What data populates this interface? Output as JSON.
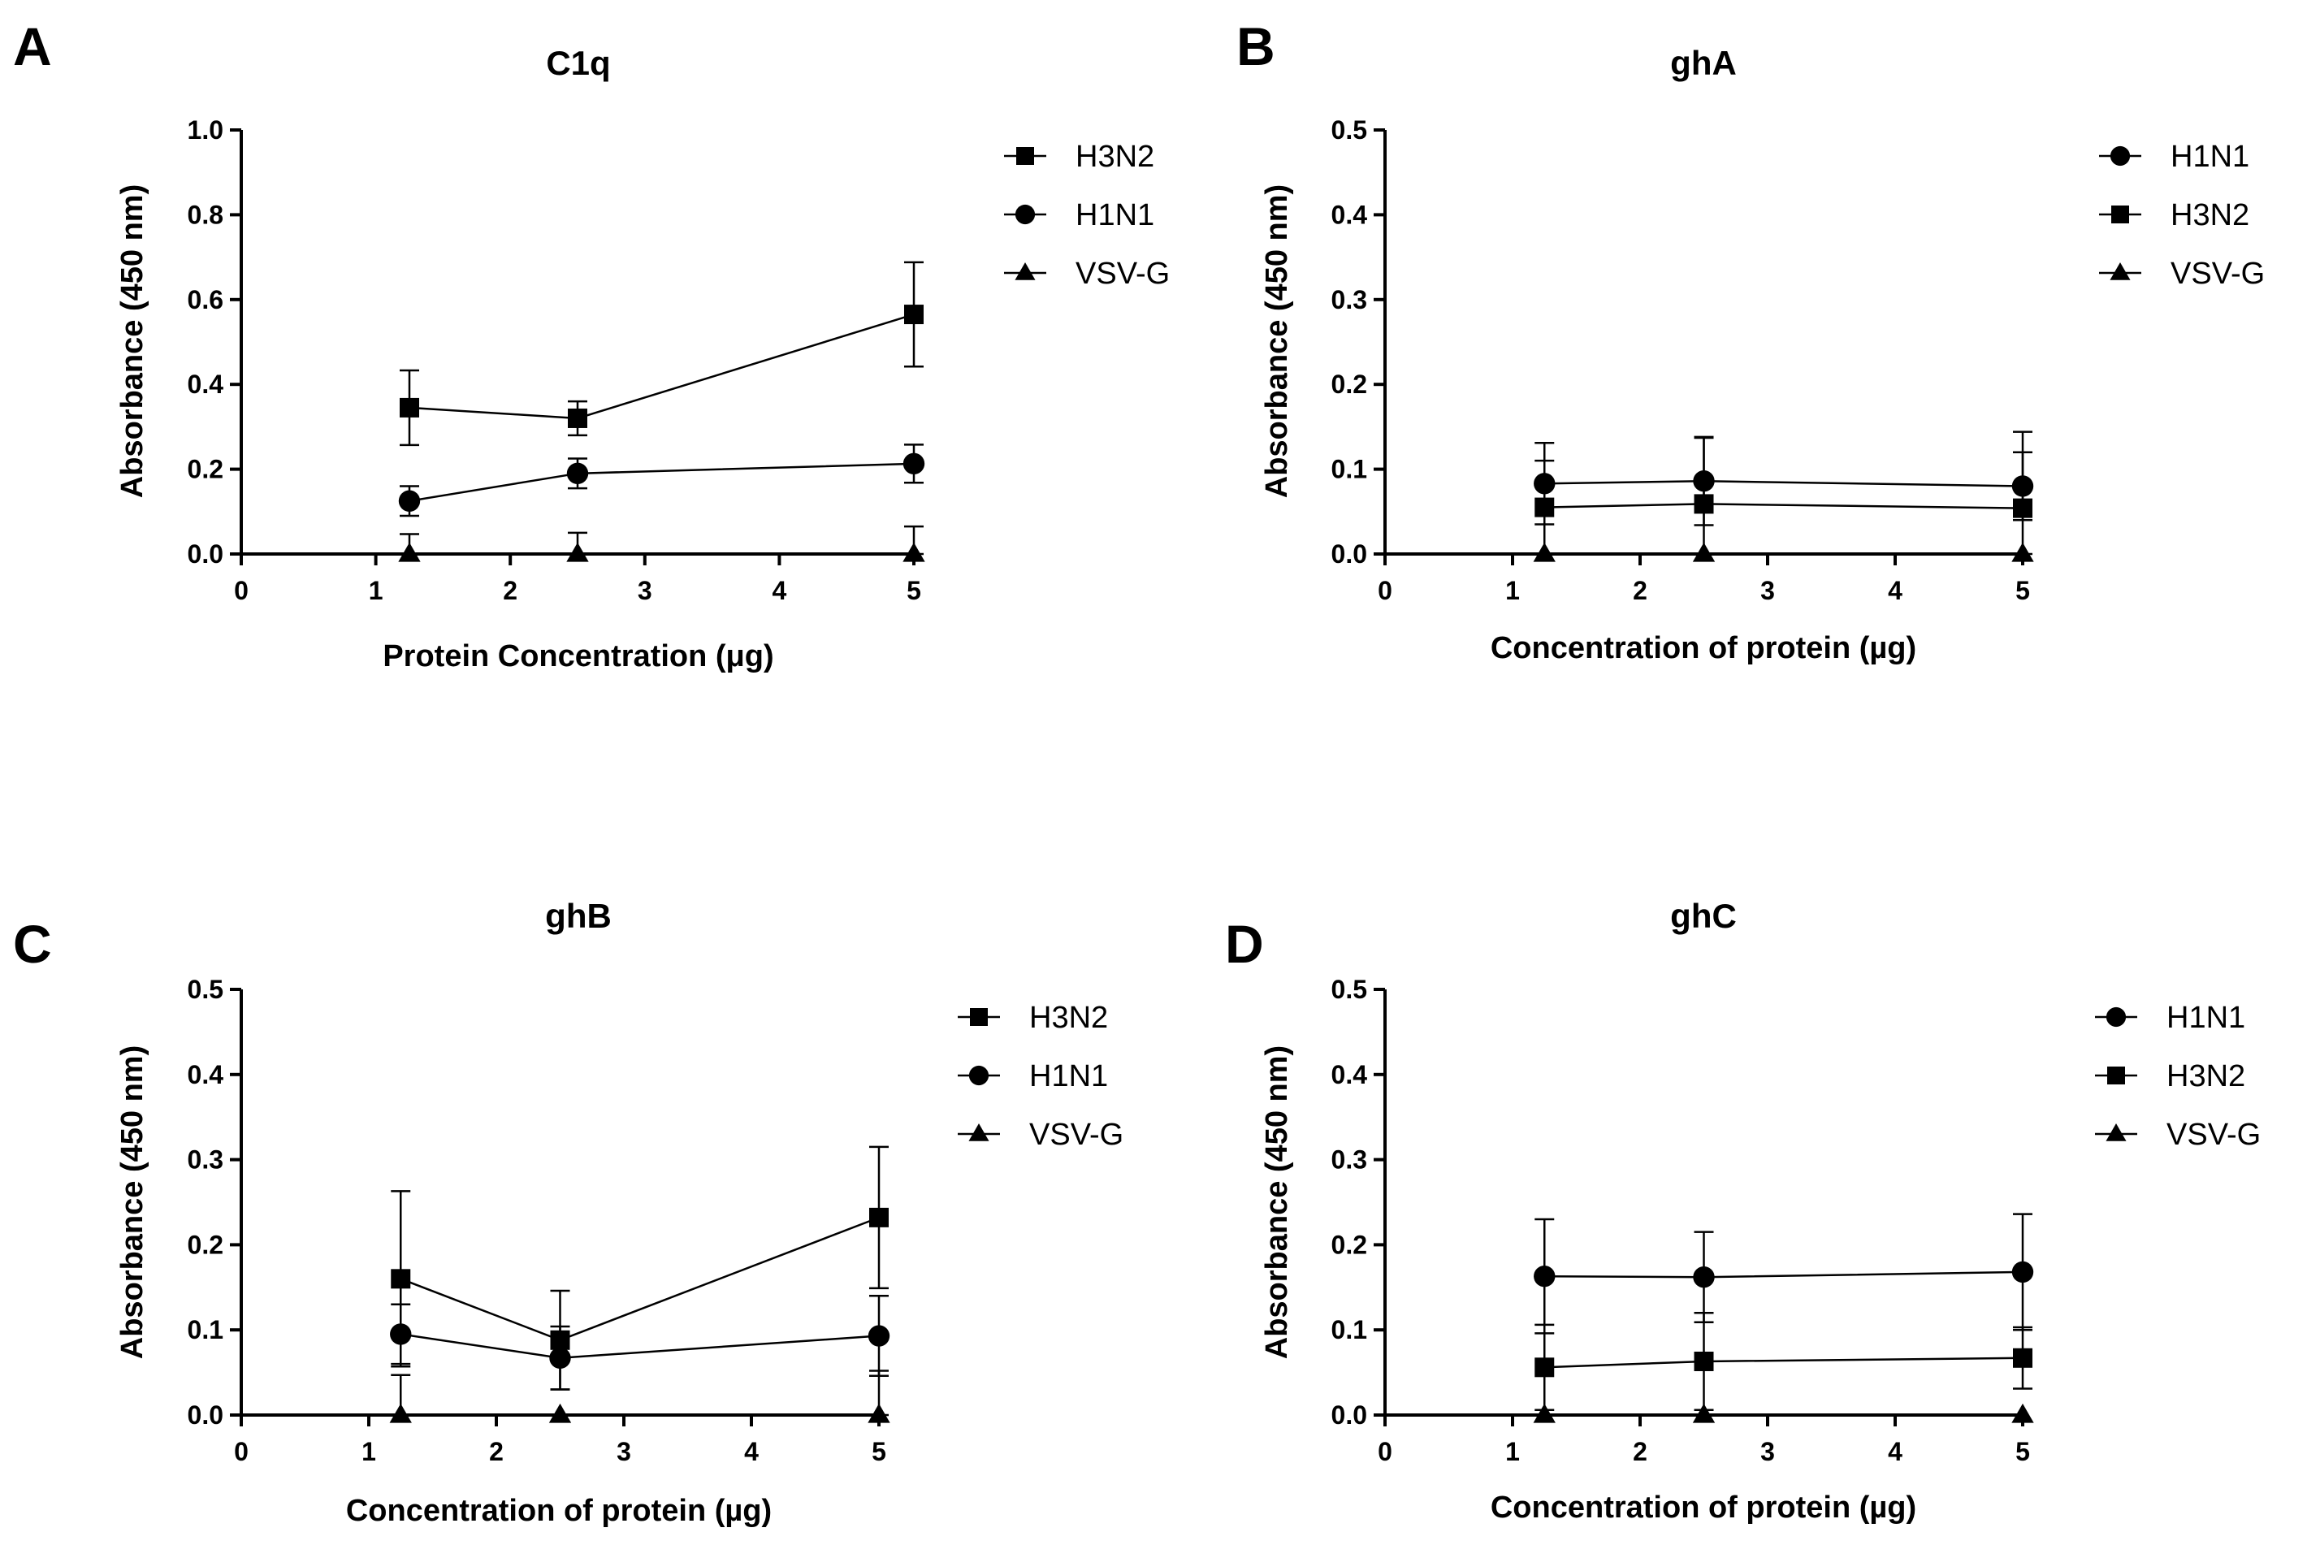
{
  "chart_data": [
    {
      "panel": "A",
      "type": "line",
      "title": "C1q",
      "xlabel": "Protein Concentration (μg)",
      "ylabel": "Absorbance (450 nm)",
      "xlim": [
        0,
        5
      ],
      "ylim": [
        0,
        1.0
      ],
      "xticks": [
        "0",
        "1",
        "2",
        "3",
        "4",
        "5"
      ],
      "yticks": [
        "0.0",
        "0.2",
        "0.4",
        "0.6",
        "0.8",
        "1.0"
      ],
      "legend": "right",
      "series": [
        {
          "name": "H3N2",
          "marker": "square",
          "x": [
            1.25,
            2.5,
            5
          ],
          "y": [
            0.345,
            0.32,
            0.565
          ],
          "err": [
            0.088,
            0.04,
            0.123
          ]
        },
        {
          "name": "H1N1",
          "marker": "circle",
          "x": [
            1.25,
            2.5,
            5
          ],
          "y": [
            0.125,
            0.19,
            0.213
          ],
          "err": [
            0.035,
            0.035,
            0.045
          ]
        },
        {
          "name": "VSV-G",
          "marker": "triangle",
          "x": [
            1.25,
            2.5,
            5
          ],
          "y": [
            0.0,
            0.0,
            0.0
          ],
          "err": [
            0.047,
            0.05,
            0.065
          ]
        }
      ]
    },
    {
      "panel": "B",
      "type": "line",
      "title": "ghA",
      "xlabel": "Concentration of protein (µg)",
      "ylabel": "Absorbance (450 nm)",
      "xlim": [
        0,
        5
      ],
      "ylim": [
        0,
        0.5
      ],
      "xticks": [
        "0",
        "1",
        "2",
        "3",
        "4",
        "5"
      ],
      "yticks": [
        "0.0",
        "0.1",
        "0.2",
        "0.3",
        "0.4",
        "0.5"
      ],
      "legend": "right",
      "series": [
        {
          "name": "H1N1",
          "marker": "circle",
          "x": [
            1.25,
            2.5,
            5
          ],
          "y": [
            0.083,
            0.086,
            0.08
          ],
          "err": [
            0.048,
            0.052,
            0.04
          ]
        },
        {
          "name": "H3N2",
          "marker": "square",
          "x": [
            1.25,
            2.5,
            5
          ],
          "y": [
            0.055,
            0.059,
            0.054
          ],
          "err": [
            0.055,
            0.078,
            0.09
          ]
        },
        {
          "name": "VSV-G",
          "marker": "triangle",
          "x": [
            1.25,
            2.5,
            5
          ],
          "y": [
            0.0,
            0.0,
            0.0
          ],
          "err": [
            0.0,
            0.0,
            0.0
          ]
        }
      ]
    },
    {
      "panel": "C",
      "type": "line",
      "title": "ghB",
      "xlabel": "Concentration of protein (µg)",
      "ylabel": "Absorbance (450 nm)",
      "xlim": [
        0,
        5
      ],
      "ylim": [
        0,
        0.5
      ],
      "xticks": [
        "0",
        "1",
        "2",
        "3",
        "4",
        "5"
      ],
      "yticks": [
        "0.0",
        "0.1",
        "0.2",
        "0.3",
        "0.4",
        "0.5"
      ],
      "legend": "right",
      "series": [
        {
          "name": "H3N2",
          "marker": "square",
          "x": [
            1.25,
            2.5,
            5
          ],
          "y": [
            0.16,
            0.088,
            0.232
          ],
          "err": [
            0.103,
            0.058,
            0.083
          ]
        },
        {
          "name": "H1N1",
          "marker": "circle",
          "x": [
            1.25,
            2.5,
            5
          ],
          "y": [
            0.095,
            0.067,
            0.093
          ],
          "err": [
            0.035,
            0.037,
            0.047
          ]
        },
        {
          "name": "VSV-G",
          "marker": "triangle",
          "x": [
            1.25,
            2.5,
            5
          ],
          "y": [
            0.0,
            0.0,
            0.0
          ],
          "err": [
            0.047,
            0.0,
            0.052
          ]
        }
      ]
    },
    {
      "panel": "D",
      "type": "line",
      "title": "ghC",
      "xlabel": "Concentration of protein (µg)",
      "ylabel": "Absorbance (450 nm)",
      "xlim": [
        0,
        5
      ],
      "ylim": [
        0,
        0.5
      ],
      "xticks": [
        "0",
        "1",
        "2",
        "3",
        "4",
        "5"
      ],
      "yticks": [
        "0.0",
        "0.1",
        "0.2",
        "0.3",
        "0.4",
        "0.5"
      ],
      "legend": "right",
      "series": [
        {
          "name": "H1N1",
          "marker": "circle",
          "x": [
            1.25,
            2.5,
            5
          ],
          "y": [
            0.163,
            0.162,
            0.168
          ],
          "err": [
            0.067,
            0.053,
            0.068
          ]
        },
        {
          "name": "H3N2",
          "marker": "square",
          "x": [
            1.25,
            2.5,
            5
          ],
          "y": [
            0.056,
            0.063,
            0.067
          ],
          "err": [
            0.05,
            0.057,
            0.036
          ]
        },
        {
          "name": "VSV-G",
          "marker": "triangle",
          "x": [
            1.25,
            2.5,
            5
          ],
          "y": [
            0.0,
            0.0,
            0.0
          ],
          "err": [
            0.0,
            0.0,
            0.0
          ]
        }
      ]
    }
  ]
}
